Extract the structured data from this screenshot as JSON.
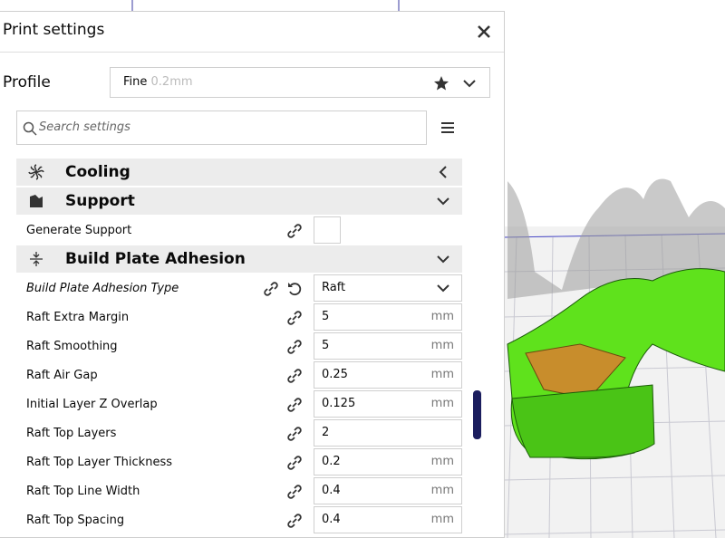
{
  "panel": {
    "title": "Print settings"
  },
  "profile": {
    "label": "Profile",
    "name": "Fine",
    "detail": "0.2mm"
  },
  "search": {
    "placeholder": "Search settings"
  },
  "sections": [
    {
      "title": "Cooling",
      "expanded": false,
      "settings": []
    },
    {
      "title": "Support",
      "expanded": true,
      "settings": [
        {
          "label": "Generate Support",
          "kind": "checkbox"
        }
      ]
    },
    {
      "title": "Build Plate Adhesion",
      "expanded": true,
      "settings": [
        {
          "label": "Build Plate Adhesion Type",
          "kind": "dropdown",
          "value": "Raft",
          "modified": true
        },
        {
          "label": "Raft Extra Margin",
          "kind": "field",
          "value": "5",
          "unit": "mm"
        },
        {
          "label": "Raft Smoothing",
          "kind": "field",
          "value": "5",
          "unit": "mm"
        },
        {
          "label": "Raft Air Gap",
          "kind": "field",
          "value": "0.25",
          "unit": "mm"
        },
        {
          "label": "Initial Layer Z Overlap",
          "kind": "field",
          "value": "0.125",
          "unit": "mm"
        },
        {
          "label": "Raft Top Layers",
          "kind": "field",
          "value": "2"
        },
        {
          "label": "Raft Top Layer Thickness",
          "kind": "field",
          "value": "0.2",
          "unit": "mm"
        },
        {
          "label": "Raft Top Line Width",
          "kind": "field",
          "value": "0.4",
          "unit": "mm"
        },
        {
          "label": "Raft Top Spacing",
          "kind": "field",
          "value": "0.4",
          "unit": "mm"
        }
      ]
    }
  ]
}
